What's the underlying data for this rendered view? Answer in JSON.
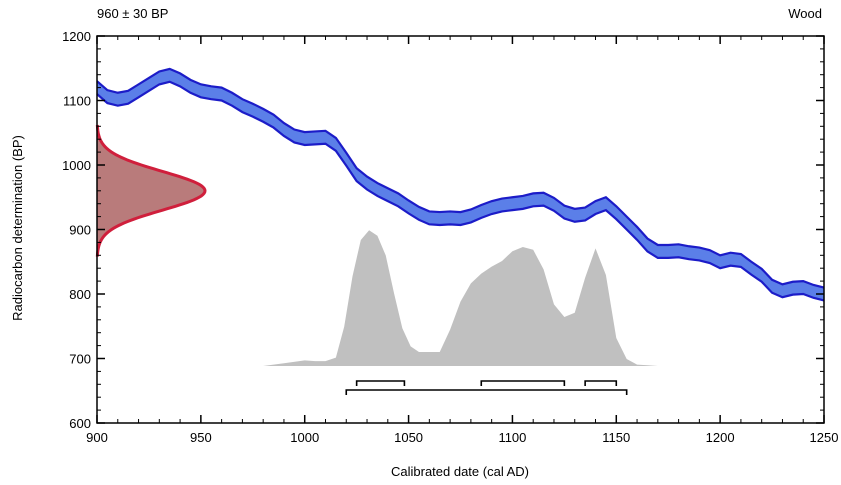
{
  "header": {
    "left": "960 ± 30 BP",
    "right": "Wood"
  },
  "chart_data": {
    "type": "area",
    "title": "",
    "xlabel": "Calibrated date (cal AD)",
    "ylabel": "Radiocarbon determination (BP)",
    "xlim": [
      900,
      1250
    ],
    "ylim": [
      600,
      1200
    ],
    "xticks": [
      900,
      950,
      1000,
      1050,
      1100,
      1150,
      1200,
      1250
    ],
    "yticks": [
      600,
      700,
      800,
      900,
      1000,
      1100,
      1200
    ],
    "grid": false,
    "measurement": {
      "mean_bp": 960,
      "error_bp": 30
    },
    "calibration_curve": {
      "x": [
        900,
        905,
        910,
        915,
        920,
        925,
        930,
        935,
        940,
        945,
        950,
        955,
        960,
        965,
        970,
        975,
        980,
        985,
        990,
        995,
        1000,
        1005,
        1010,
        1015,
        1020,
        1025,
        1030,
        1035,
        1040,
        1045,
        1050,
        1055,
        1060,
        1065,
        1070,
        1075,
        1080,
        1085,
        1090,
        1095,
        1100,
        1105,
        1110,
        1115,
        1120,
        1125,
        1130,
        1135,
        1140,
        1145,
        1150,
        1155,
        1160,
        1165,
        1170,
        1175,
        1180,
        1185,
        1190,
        1195,
        1200,
        1205,
        1210,
        1215,
        1220,
        1225,
        1230,
        1235,
        1240,
        1245,
        1250
      ],
      "y": [
        1120,
        1106,
        1102,
        1105,
        1115,
        1125,
        1135,
        1139,
        1132,
        1122,
        1115,
        1112,
        1110,
        1102,
        1092,
        1085,
        1077,
        1068,
        1055,
        1045,
        1041,
        1042,
        1043,
        1032,
        1009,
        985,
        972,
        962,
        954,
        946,
        935,
        925,
        918,
        917,
        918,
        917,
        921,
        928,
        934,
        938,
        940,
        942,
        946,
        947,
        939,
        927,
        922,
        924,
        934,
        940,
        926,
        910,
        894,
        876,
        866,
        866,
        867,
        864,
        862,
        858,
        850,
        854,
        852,
        840,
        829,
        812,
        805,
        809,
        810,
        804,
        800
      ],
      "sigma": [
        10,
        10,
        10,
        10,
        10,
        10,
        10,
        10,
        10,
        10,
        10,
        10,
        10,
        10,
        10,
        10,
        10,
        10,
        10,
        10,
        10,
        10,
        10,
        10,
        10,
        10,
        10,
        10,
        10,
        10,
        10,
        10,
        10,
        10,
        10,
        10,
        10,
        10,
        10,
        10,
        10,
        10,
        10,
        10,
        10,
        10,
        10,
        10,
        10,
        10,
        10,
        10,
        10,
        10,
        10,
        10,
        10,
        10,
        10,
        10,
        10,
        10,
        10,
        10,
        10,
        10,
        10,
        10,
        10,
        10,
        10
      ]
    },
    "posterior_distribution": {
      "x": [
        980,
        990,
        1000,
        1005,
        1010,
        1015,
        1019,
        1023,
        1027,
        1031,
        1035,
        1039,
        1043,
        1047,
        1051,
        1055,
        1060,
        1065,
        1070,
        1075,
        1080,
        1085,
        1090,
        1095,
        1100,
        1105,
        1110,
        1115,
        1120,
        1125,
        1130,
        1135,
        1140,
        1145,
        1150,
        1155,
        1160,
        1165,
        1170,
        1180,
        1190,
        1200,
        1210
      ],
      "prob": [
        0.0,
        0.02,
        0.04,
        0.035,
        0.035,
        0.06,
        0.28,
        0.64,
        0.9,
        0.97,
        0.93,
        0.79,
        0.52,
        0.27,
        0.14,
        0.1,
        0.1,
        0.1,
        0.26,
        0.46,
        0.59,
        0.66,
        0.71,
        0.75,
        0.82,
        0.85,
        0.83,
        0.69,
        0.44,
        0.35,
        0.38,
        0.63,
        0.84,
        0.65,
        0.2,
        0.05,
        0.01,
        0.005,
        0.0,
        0.0,
        0.0,
        0.0,
        0.0
      ]
    },
    "ranges": {
      "sigma1": [
        [
          1025,
          1048
        ],
        [
          1085,
          1125
        ],
        [
          1135,
          1150
        ]
      ],
      "sigma2": [
        [
          1020,
          1155
        ]
      ]
    }
  }
}
